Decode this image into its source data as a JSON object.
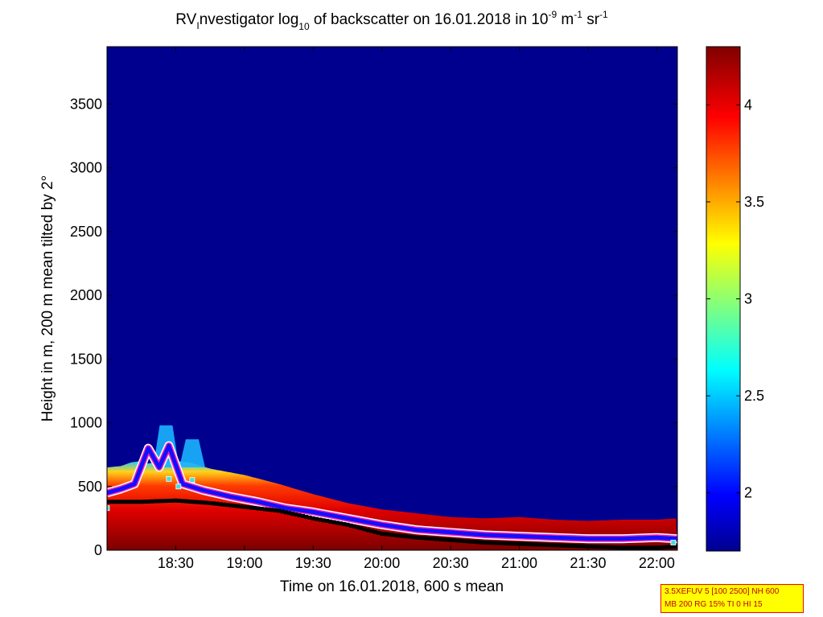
{
  "chart_data": {
    "type": "heatmap",
    "title": {
      "p1": "RV",
      "p2": "I",
      "p3": "nvestigator log",
      "p4": "10",
      "p5": " of backscatter on 16.01.2018 in 10",
      "p6": "-9",
      "p7": " m",
      "p8": "-1",
      "p9": " sr",
      "p10": "-1"
    },
    "xlabel": "Time on 16.01.2018, 600 s mean",
    "ylabel": "Height in m, 200 m mean tilted by 2°",
    "xlim_hours": [
      18.0,
      22.15
    ],
    "ylim": [
      0,
      3950
    ],
    "xticks": [
      {
        "h": 18.5,
        "label": "18:30"
      },
      {
        "h": 19.0,
        "label": "19:00"
      },
      {
        "h": 19.5,
        "label": "19:30"
      },
      {
        "h": 20.0,
        "label": "20:00"
      },
      {
        "h": 20.5,
        "label": "20:30"
      },
      {
        "h": 21.0,
        "label": "21:00"
      },
      {
        "h": 21.5,
        "label": "21:30"
      },
      {
        "h": 22.0,
        "label": "22:00"
      }
    ],
    "yticks": [
      {
        "v": 0,
        "label": "0"
      },
      {
        "v": 500,
        "label": "500"
      },
      {
        "v": 1000,
        "label": "1000"
      },
      {
        "v": 1500,
        "label": "1500"
      },
      {
        "v": 2000,
        "label": "2000"
      },
      {
        "v": 2500,
        "label": "2500"
      },
      {
        "v": 3000,
        "label": "3000"
      },
      {
        "v": 3500,
        "label": "3500"
      }
    ],
    "colorbar": {
      "clim": [
        1.7,
        4.3
      ],
      "ticks": [
        {
          "v": 2,
          "label": "2"
        },
        {
          "v": 2.5,
          "label": "2.5"
        },
        {
          "v": 3,
          "label": "3"
        },
        {
          "v": 3.5,
          "label": "3.5"
        },
        {
          "v": 4,
          "label": "4"
        }
      ]
    },
    "layer_top_m": [
      [
        18.0,
        650
      ],
      [
        18.1,
        660
      ],
      [
        18.18,
        690
      ],
      [
        18.25,
        700
      ],
      [
        18.3,
        680
      ],
      [
        18.4,
        700
      ],
      [
        18.5,
        700
      ],
      [
        18.6,
        690
      ],
      [
        18.75,
        640
      ],
      [
        19.0,
        590
      ],
      [
        19.25,
        520
      ],
      [
        19.5,
        440
      ],
      [
        19.75,
        370
      ],
      [
        20.0,
        320
      ],
      [
        20.25,
        290
      ],
      [
        20.5,
        260
      ],
      [
        20.75,
        250
      ],
      [
        21.0,
        260
      ],
      [
        21.25,
        240
      ],
      [
        21.5,
        230
      ],
      [
        21.75,
        240
      ],
      [
        22.0,
        240
      ],
      [
        22.15,
        250
      ]
    ],
    "plume_peaks": [
      {
        "h": 18.43,
        "top_m": 980
      },
      {
        "h": 18.62,
        "top_m": 870
      }
    ],
    "boundary_layer_m": [
      [
        18.0,
        450
      ],
      [
        18.1,
        480
      ],
      [
        18.2,
        520
      ],
      [
        18.3,
        800
      ],
      [
        18.38,
        650
      ],
      [
        18.45,
        820
      ],
      [
        18.55,
        520
      ],
      [
        18.7,
        470
      ],
      [
        18.9,
        420
      ],
      [
        19.1,
        380
      ],
      [
        19.3,
        330
      ],
      [
        19.5,
        300
      ],
      [
        19.75,
        250
      ],
      [
        20.0,
        200
      ],
      [
        20.25,
        160
      ],
      [
        20.5,
        140
      ],
      [
        20.75,
        120
      ],
      [
        21.0,
        110
      ],
      [
        21.25,
        100
      ],
      [
        21.5,
        90
      ],
      [
        21.75,
        90
      ],
      [
        22.0,
        100
      ],
      [
        22.15,
        90
      ]
    ],
    "marker_layer_m": [
      [
        18.0,
        380
      ],
      [
        18.25,
        380
      ],
      [
        18.5,
        390
      ],
      [
        18.75,
        370
      ],
      [
        19.0,
        340
      ],
      [
        19.25,
        310
      ],
      [
        19.5,
        250
      ],
      [
        19.75,
        200
      ],
      [
        20.0,
        130
      ],
      [
        20.25,
        100
      ],
      [
        20.5,
        80
      ],
      [
        20.75,
        60
      ],
      [
        21.0,
        50
      ],
      [
        21.25,
        40
      ],
      [
        21.5,
        30
      ],
      [
        21.75,
        20
      ],
      [
        22.0,
        20
      ],
      [
        22.15,
        30
      ]
    ],
    "colors": {
      "background": "#00008f",
      "colormap": "jet"
    }
  },
  "info_box": {
    "line1": "3.5XEFUV 5 [100 2500] NH 600",
    "line2": "MB 200 RG 15% TI 0 HI 15"
  }
}
